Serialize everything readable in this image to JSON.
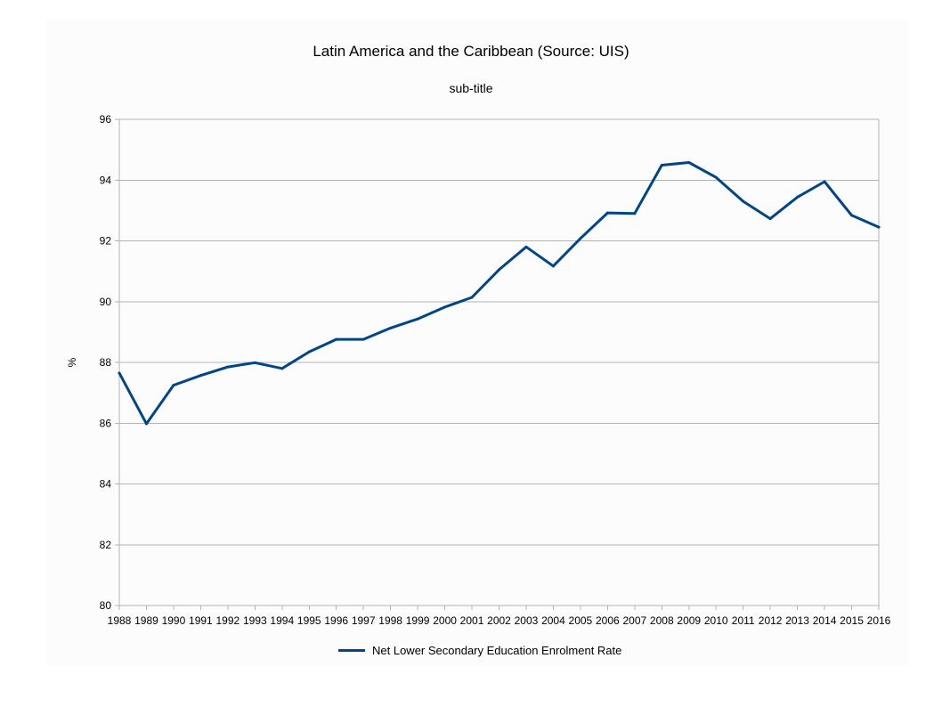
{
  "chart_data": {
    "type": "line",
    "title": "Latin America and the Caribbean (Source: UIS)",
    "subtitle": "sub-title",
    "xlabel": "",
    "ylabel": "%",
    "ylim": [
      80,
      96
    ],
    "yticks": [
      80,
      82,
      84,
      86,
      88,
      90,
      92,
      94,
      96
    ],
    "grid": true,
    "legend_position": "bottom",
    "categories": [
      "1988",
      "1989",
      "1990",
      "1991",
      "1992",
      "1993",
      "1994",
      "1995",
      "1996",
      "1997",
      "1998",
      "1999",
      "2000",
      "2001",
      "2002",
      "2003",
      "2004",
      "2005",
      "2006",
      "2007",
      "2008",
      "2009",
      "2010",
      "2011",
      "2012",
      "2013",
      "2014",
      "2015",
      "2016"
    ],
    "series": [
      {
        "name": "Net Lower Secondary Education Enrolment Rate",
        "color": "#004586",
        "values": [
          87.65,
          85.98,
          87.25,
          87.57,
          87.85,
          87.99,
          87.8,
          88.35,
          88.76,
          88.76,
          89.13,
          89.43,
          89.82,
          90.14,
          91.05,
          91.8,
          91.17,
          92.08,
          92.92,
          92.9,
          94.49,
          94.58,
          94.09,
          93.3,
          92.73,
          93.44,
          93.95,
          92.84,
          92.45
        ]
      }
    ]
  }
}
